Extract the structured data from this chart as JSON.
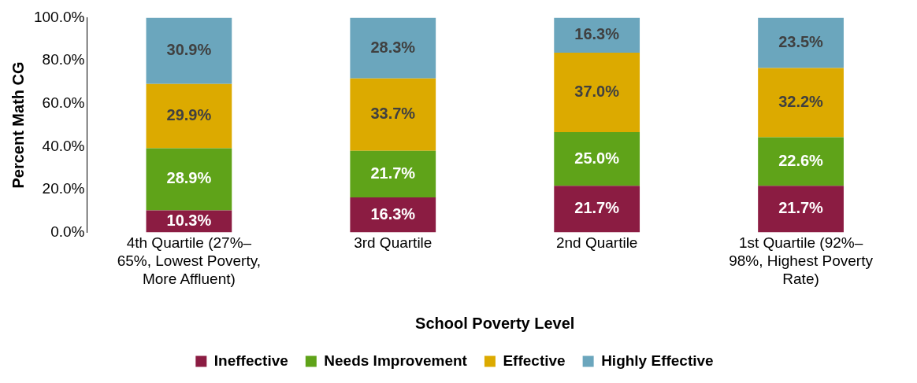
{
  "chart_data": {
    "type": "bar",
    "stacked": true,
    "xlabel": "School Poverty Level",
    "ylabel": "Percent Math CG",
    "categories": [
      "4th Quartile (27%–65%, Lowest Poverty, More Affluent)",
      "3rd Quartile",
      "2nd Quartile",
      "1st Quartile (92%–98%, Highest Poverty Rate)"
    ],
    "series": [
      {
        "name": "Ineffective",
        "color": "#8b1c42",
        "values": [
          10.3,
          16.3,
          21.7,
          21.7
        ],
        "value_labels": [
          "10.3%",
          "16.3%",
          "21.7%",
          "21.7%"
        ]
      },
      {
        "name": "Needs Improvement",
        "color": "#5fa319",
        "values": [
          28.9,
          21.7,
          25.0,
          22.6
        ],
        "value_labels": [
          "28.9%",
          "21.7%",
          "25.0%",
          "22.6%"
        ]
      },
      {
        "name": "Effective",
        "color": "#dcaa00",
        "values": [
          29.9,
          33.7,
          37.0,
          32.2
        ],
        "value_labels": [
          "29.9%",
          "33.7%",
          "37.0%",
          "32.2%"
        ]
      },
      {
        "name": "Highly Effective",
        "color": "#6ba6bd",
        "values": [
          30.9,
          28.3,
          16.3,
          23.5
        ],
        "value_labels": [
          "30.9%",
          "28.3%",
          "16.3%",
          "23.5%"
        ]
      }
    ],
    "ylim": [
      0,
      100
    ],
    "yticks": [
      {
        "value": 0,
        "label": "0.0%"
      },
      {
        "value": 20,
        "label": "20.0%"
      },
      {
        "value": 40,
        "label": "40.0%"
      },
      {
        "value": 60,
        "label": "60.0%"
      },
      {
        "value": 80,
        "label": "80.0%"
      },
      {
        "value": 100,
        "label": "100.0%"
      }
    ],
    "grid": false,
    "legend": "bottom"
  }
}
